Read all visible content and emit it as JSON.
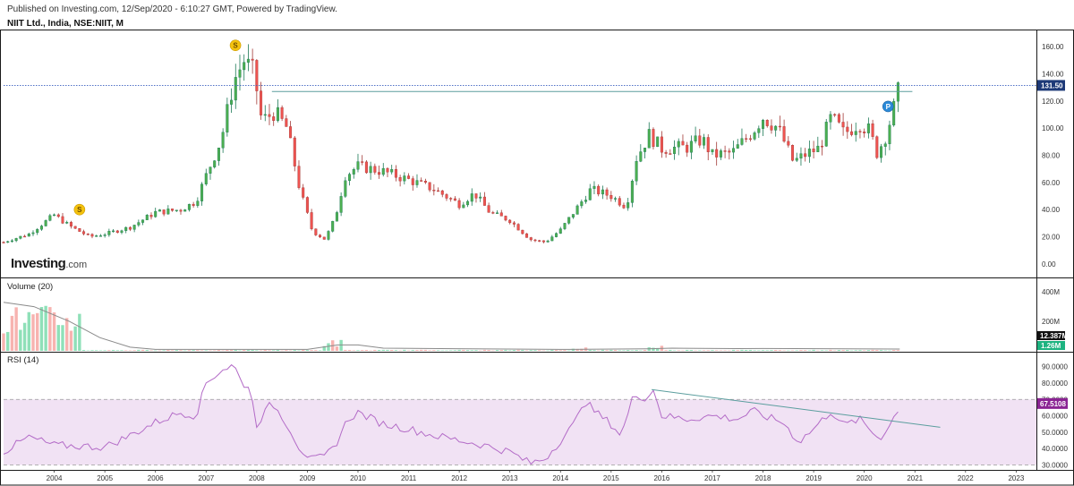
{
  "header": {
    "published": "Published on Investing.com, 12/Sep/2020 - 6:10:27 GMT, Powered by TradingView.",
    "symbol": "NIIT Ltd., India, NSE:NIIT, M"
  },
  "logo": {
    "brand": "Investing",
    "suffix": ".com"
  },
  "colors": {
    "up": "#26a69a",
    "down": "#ef5350",
    "up_fill": "#4caf50",
    "volume_up": "#8fe0b8",
    "volume_down": "#f7b3b0",
    "rsi_line": "#b36bc7",
    "rsi_band": "#f1e2f4",
    "trendline": "#5b9e9e",
    "price_badge": "#1e3a78",
    "rsi_badge": "#8a2393"
  },
  "chart_data": [
    {
      "type": "candlestick",
      "pane": "price",
      "title": "NIIT Ltd., India, NSE:NIIT, M",
      "ylim": [
        -10,
        172
      ],
      "y_ticks": [
        "0.00",
        "20.00",
        "40.00",
        "60.00",
        "80.00",
        "100.00",
        "120.00",
        "140.00",
        "160.00"
      ],
      "y_tick_values": [
        0,
        20,
        40,
        60,
        80,
        100,
        120,
        140,
        160
      ],
      "last_price": 131.5,
      "last_price_label": "131.50",
      "resistance_line": {
        "from_year": 2008.3,
        "to_year": 2020.95,
        "value": 127
      },
      "keypoints": [
        [
          2003.0,
          16
        ],
        [
          2003.5,
          22
        ],
        [
          2004.0,
          36
        ],
        [
          2004.3,
          28
        ],
        [
          2004.7,
          20
        ],
        [
          2005.0,
          22
        ],
        [
          2005.5,
          27
        ],
        [
          2006.0,
          38
        ],
        [
          2006.5,
          40
        ],
        [
          2006.8,
          46
        ],
        [
          2007.0,
          65
        ],
        [
          2007.3,
          92
        ],
        [
          2007.55,
          135
        ],
        [
          2007.75,
          150
        ],
        [
          2007.95,
          140
        ],
        [
          2008.1,
          105
        ],
        [
          2008.35,
          112
        ],
        [
          2008.6,
          100
        ],
        [
          2008.85,
          55
        ],
        [
          2009.1,
          24
        ],
        [
          2009.35,
          18
        ],
        [
          2009.55,
          34
        ],
        [
          2009.75,
          65
        ],
        [
          2010.0,
          72
        ],
        [
          2010.5,
          68
        ],
        [
          2011.0,
          62
        ],
        [
          2011.5,
          55
        ],
        [
          2012.0,
          44
        ],
        [
          2012.3,
          52
        ],
        [
          2012.6,
          38
        ],
        [
          2013.0,
          32
        ],
        [
          2013.4,
          18
        ],
        [
          2013.7,
          16
        ],
        [
          2014.0,
          25
        ],
        [
          2014.3,
          40
        ],
        [
          2014.6,
          55
        ],
        [
          2015.0,
          50
        ],
        [
          2015.3,
          42
        ],
        [
          2015.5,
          78
        ],
        [
          2015.75,
          95
        ],
        [
          2016.0,
          85
        ],
        [
          2016.5,
          86
        ],
        [
          2016.8,
          92
        ],
        [
          2017.0,
          80
        ],
        [
          2017.4,
          82
        ],
        [
          2017.8,
          98
        ],
        [
          2018.0,
          108
        ],
        [
          2018.3,
          100
        ],
        [
          2018.6,
          75
        ],
        [
          2018.9,
          82
        ],
        [
          2019.1,
          85
        ],
        [
          2019.35,
          108
        ],
        [
          2019.6,
          96
        ],
        [
          2019.9,
          104
        ],
        [
          2020.1,
          98
        ],
        [
          2020.25,
          82
        ],
        [
          2020.4,
          92
        ],
        [
          2020.55,
          110
        ],
        [
          2020.7,
          131
        ]
      ],
      "annotations": [
        {
          "label": "S",
          "x_year": 2004.5,
          "value": 40
        },
        {
          "label": "S",
          "x_year": 2007.58,
          "value": 161
        },
        {
          "label": "P",
          "x_year": 2020.47,
          "value": 116
        }
      ]
    },
    {
      "type": "bar",
      "pane": "volume",
      "title": "Volume (20)",
      "ylim": [
        0,
        480
      ],
      "y_ticks": [
        "200M",
        "400M"
      ],
      "y_tick_values": [
        200,
        400
      ],
      "last_labels": [
        "12.387M",
        "1.26M"
      ],
      "spike_periods": [
        {
          "from_year": 2003.0,
          "to_year": 2004.5,
          "scale": 260
        },
        {
          "from_year": 2009.3,
          "to_year": 2009.7,
          "scale": 65
        },
        {
          "from_year": 2014.2,
          "to_year": 2014.5,
          "scale": 24
        },
        {
          "from_year": 2015.7,
          "to_year": 2016.0,
          "scale": 34
        }
      ],
      "sma_keypoints": [
        [
          2003.0,
          330
        ],
        [
          2003.6,
          300
        ],
        [
          2004.3,
          200
        ],
        [
          2004.9,
          90
        ],
        [
          2005.5,
          25
        ],
        [
          2006.0,
          10
        ],
        [
          2009.0,
          10
        ],
        [
          2009.6,
          40
        ],
        [
          2010.0,
          40
        ],
        [
          2010.5,
          18
        ],
        [
          2014.0,
          10
        ],
        [
          2015.7,
          14
        ],
        [
          2016.2,
          18
        ],
        [
          2017.5,
          15
        ],
        [
          2018.0,
          16
        ],
        [
          2020.7,
          12
        ]
      ]
    },
    {
      "type": "line",
      "pane": "rsi",
      "title": "RSI (14)",
      "ylim": [
        27,
        98
      ],
      "y_ticks": [
        "30.0000",
        "40.0000",
        "50.0000",
        "60.0000",
        "70.0000",
        "80.0000",
        "90.0000"
      ],
      "y_tick_values": [
        30,
        40,
        50,
        60,
        70,
        80,
        90
      ],
      "band": [
        30,
        70
      ],
      "last_value_label": "67.5108",
      "trendline": {
        "from": [
          2015.8,
          76
        ],
        "to": [
          2021.5,
          53
        ]
      },
      "keypoints": [
        [
          2003.0,
          38
        ],
        [
          2003.5,
          47
        ],
        [
          2004.0,
          42
        ],
        [
          2005.0,
          41
        ],
        [
          2005.5,
          48
        ],
        [
          2006.0,
          56
        ],
        [
          2006.5,
          62
        ],
        [
          2006.8,
          60
        ],
        [
          2007.0,
          80
        ],
        [
          2007.3,
          88
        ],
        [
          2007.55,
          91
        ],
        [
          2007.7,
          80
        ],
        [
          2007.85,
          78
        ],
        [
          2008.0,
          55
        ],
        [
          2008.3,
          68
        ],
        [
          2008.6,
          55
        ],
        [
          2008.85,
          40
        ],
        [
          2009.1,
          33
        ],
        [
          2009.35,
          35
        ],
        [
          2009.55,
          42
        ],
        [
          2009.8,
          58
        ],
        [
          2010.0,
          62
        ],
        [
          2010.5,
          55
        ],
        [
          2011.0,
          52
        ],
        [
          2011.5,
          48
        ],
        [
          2012.0,
          45
        ],
        [
          2012.5,
          42
        ],
        [
          2013.0,
          38
        ],
        [
          2013.4,
          31
        ],
        [
          2013.7,
          34
        ],
        [
          2014.0,
          45
        ],
        [
          2014.3,
          56
        ],
        [
          2014.45,
          70
        ],
        [
          2014.7,
          62
        ],
        [
          2015.0,
          55
        ],
        [
          2015.2,
          48
        ],
        [
          2015.45,
          73
        ],
        [
          2015.7,
          71
        ],
        [
          2015.85,
          76
        ],
        [
          2016.0,
          60
        ],
        [
          2016.5,
          58
        ],
        [
          2017.0,
          60
        ],
        [
          2017.5,
          58
        ],
        [
          2017.8,
          63
        ],
        [
          2018.0,
          60
        ],
        [
          2018.4,
          56
        ],
        [
          2018.7,
          44
        ],
        [
          2019.0,
          52
        ],
        [
          2019.35,
          63
        ],
        [
          2019.6,
          54
        ],
        [
          2019.9,
          58
        ],
        [
          2020.1,
          52
        ],
        [
          2020.3,
          46
        ],
        [
          2020.5,
          54
        ],
        [
          2020.72,
          67.5
        ]
      ]
    }
  ],
  "x_axis": {
    "range": [
      2003.0,
      2023.4
    ],
    "labels": [
      "2004",
      "2005",
      "2006",
      "2007",
      "2008",
      "2009",
      "2010",
      "2011",
      "2012",
      "2013",
      "2014",
      "2015",
      "2016",
      "2017",
      "2018",
      "2019",
      "2020",
      "2021",
      "2022",
      "2023"
    ],
    "label_values": [
      2004,
      2005,
      2006,
      2007,
      2008,
      2009,
      2010,
      2011,
      2012,
      2013,
      2014,
      2015,
      2016,
      2017,
      2018,
      2019,
      2020,
      2021,
      2022,
      2023
    ]
  }
}
